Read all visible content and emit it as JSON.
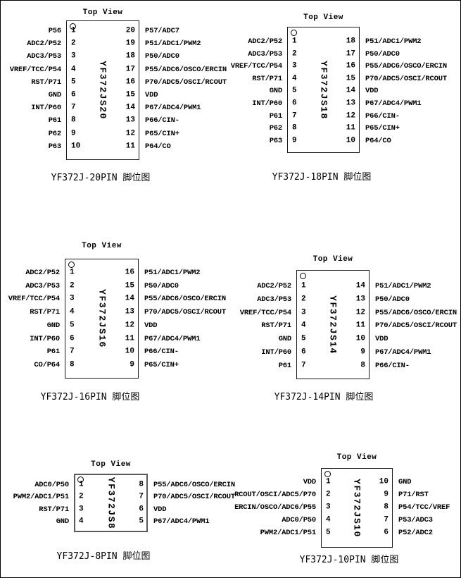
{
  "colors": {
    "background": "#ffffff",
    "text": "#000000",
    "box_border": "#1a1a1a"
  },
  "diagrams": [
    {
      "id": "20pin",
      "top_view_label": "Top View",
      "chip_name": "YF372JS20",
      "caption": "YF372J-20PIN 脚位图",
      "pins_left": [
        {
          "num": "1",
          "label": "P56"
        },
        {
          "num": "2",
          "label": "ADC2/P52"
        },
        {
          "num": "3",
          "label": "ADC3/P53"
        },
        {
          "num": "4",
          "label": "VREF/TCC/P54"
        },
        {
          "num": "5",
          "label": "RST/P71"
        },
        {
          "num": "6",
          "label": "GND"
        },
        {
          "num": "7",
          "label": "INT/P60"
        },
        {
          "num": "8",
          "label": "P61"
        },
        {
          "num": "9",
          "label": "P62"
        },
        {
          "num": "10",
          "label": "P63"
        }
      ],
      "pins_right": [
        {
          "num": "20",
          "label": "P57/ADC7"
        },
        {
          "num": "19",
          "label": "P51/ADC1/PWM2"
        },
        {
          "num": "18",
          "label": "P50/ADC0"
        },
        {
          "num": "17",
          "label": "P55/ADC6/OSCO/ERCIN"
        },
        {
          "num": "16",
          "label": "P70/ADC5/OSCI/RCOUT"
        },
        {
          "num": "15",
          "label": "VDD"
        },
        {
          "num": "14",
          "label": "P67/ADC4/PWM1"
        },
        {
          "num": "13",
          "label": "P66/CIN-"
        },
        {
          "num": "12",
          "label": "P65/CIN+"
        },
        {
          "num": "11",
          "label": "P64/CO"
        }
      ]
    },
    {
      "id": "18pin",
      "top_view_label": "Top View",
      "chip_name": "YF372JS18",
      "caption": "YF372J-18PIN 脚位图",
      "pins_left": [
        {
          "num": "1",
          "label": "ADC2/P52"
        },
        {
          "num": "2",
          "label": "ADC3/P53"
        },
        {
          "num": "3",
          "label": "VREF/TCC/P54"
        },
        {
          "num": "4",
          "label": "RST/P71"
        },
        {
          "num": "5",
          "label": "GND"
        },
        {
          "num": "6",
          "label": "INT/P60"
        },
        {
          "num": "7",
          "label": "P61"
        },
        {
          "num": "8",
          "label": "P62"
        },
        {
          "num": "9",
          "label": "P63"
        }
      ],
      "pins_right": [
        {
          "num": "18",
          "label": "P51/ADC1/PWM2"
        },
        {
          "num": "17",
          "label": "P50/ADC0"
        },
        {
          "num": "16",
          "label": "P55/ADC6/OSCO/ERCIN"
        },
        {
          "num": "15",
          "label": "P70/ADC5/OSCI/RCOUT"
        },
        {
          "num": "14",
          "label": "VDD"
        },
        {
          "num": "13",
          "label": "P67/ADC4/PWM1"
        },
        {
          "num": "12",
          "label": "P66/CIN-"
        },
        {
          "num": "11",
          "label": "P65/CIN+"
        },
        {
          "num": "10",
          "label": "P64/CO"
        }
      ]
    },
    {
      "id": "16pin",
      "top_view_label": "Top View",
      "chip_name": "YF372JS16",
      "caption": "YF372J-16PIN 脚位图",
      "pins_left": [
        {
          "num": "1",
          "label": "ADC2/P52"
        },
        {
          "num": "2",
          "label": "ADC3/P53"
        },
        {
          "num": "3",
          "label": "VREF/TCC/P54"
        },
        {
          "num": "4",
          "label": "RST/P71"
        },
        {
          "num": "5",
          "label": "GND"
        },
        {
          "num": "6",
          "label": "INT/P60"
        },
        {
          "num": "7",
          "label": "P61"
        },
        {
          "num": "8",
          "label": "CO/P64"
        }
      ],
      "pins_right": [
        {
          "num": "16",
          "label": "P51/ADC1/PWM2"
        },
        {
          "num": "15",
          "label": "P50/ADC0"
        },
        {
          "num": "14",
          "label": "P55/ADC6/OSCO/ERCIN"
        },
        {
          "num": "13",
          "label": "P70/ADC5/OSCI/RCOUT"
        },
        {
          "num": "12",
          "label": "VDD"
        },
        {
          "num": "11",
          "label": "P67/ADC4/PWM1"
        },
        {
          "num": "10",
          "label": "P66/CIN-"
        },
        {
          "num": "9",
          "label": "P65/CIN+"
        }
      ]
    },
    {
      "id": "14pin",
      "top_view_label": "Top View",
      "chip_name": "YF372JS14",
      "caption": "YF372J-14PIN 脚位图",
      "pins_left": [
        {
          "num": "1",
          "label": "ADC2/P52"
        },
        {
          "num": "2",
          "label": "ADC3/P53"
        },
        {
          "num": "3",
          "label": "VREF/TCC/P54"
        },
        {
          "num": "4",
          "label": "RST/P71"
        },
        {
          "num": "5",
          "label": "GND"
        },
        {
          "num": "6",
          "label": "INT/P60"
        },
        {
          "num": "7",
          "label": "P61"
        }
      ],
      "pins_right": [
        {
          "num": "14",
          "label": "P51/ADC1/PWM2"
        },
        {
          "num": "13",
          "label": "P50/ADC0"
        },
        {
          "num": "12",
          "label": "P55/ADC6/OSCO/ERCIN"
        },
        {
          "num": "11",
          "label": "P70/ADC5/OSCI/RCOUT"
        },
        {
          "num": "10",
          "label": "VDD"
        },
        {
          "num": "9",
          "label": "P67/ADC4/PWM1"
        },
        {
          "num": "8",
          "label": "P66/CIN-"
        }
      ]
    },
    {
      "id": "8pin",
      "top_view_label": "Top View",
      "chip_name": "YF372JS8",
      "caption": "YF372J-8PIN 脚位图",
      "pins_left": [
        {
          "num": "1",
          "label": "ADC0/P50"
        },
        {
          "num": "2",
          "label": "PWM2/ADC1/P51"
        },
        {
          "num": "3",
          "label": "RST/P71"
        },
        {
          "num": "4",
          "label": "GND"
        }
      ],
      "pins_right": [
        {
          "num": "8",
          "label": "P55/ADC6/OSCO/ERCIN"
        },
        {
          "num": "7",
          "label": "P70/ADC5/OSCI/RCOUT"
        },
        {
          "num": "6",
          "label": "VDD"
        },
        {
          "num": "5",
          "label": "P67/ADC4/PWM1"
        }
      ]
    },
    {
      "id": "10pin",
      "top_view_label": "Top View",
      "chip_name": "YF372JS10",
      "caption": "YF372J-10PIN 脚位图",
      "pins_left": [
        {
          "num": "1",
          "label": "VDD"
        },
        {
          "num": "2",
          "label": "RCOUT/OSCI/ADC5/P70"
        },
        {
          "num": "3",
          "label": "ERCIN/OSCO/ADC6/P55"
        },
        {
          "num": "4",
          "label": "ADC0/P50"
        },
        {
          "num": "5",
          "label": "PWM2/ADC1/P51"
        }
      ],
      "pins_right": [
        {
          "num": "10",
          "label": "GND"
        },
        {
          "num": "9",
          "label": "P71/RST"
        },
        {
          "num": "8",
          "label": "P54/TCC/VREF"
        },
        {
          "num": "7",
          "label": "P53/ADC3"
        },
        {
          "num": "6",
          "label": "P52/ADC2"
        }
      ]
    }
  ]
}
